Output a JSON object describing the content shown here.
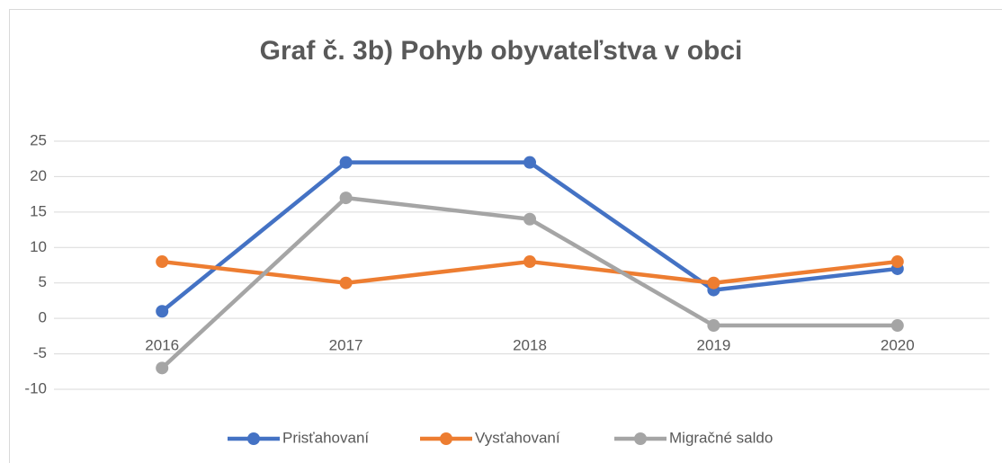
{
  "chart_data": {
    "type": "line",
    "title": "Graf č. 3b) Pohyb obyvateľstva v obci",
    "categories": [
      "2016",
      "2017",
      "2018",
      "2019",
      "2020"
    ],
    "series": [
      {
        "name": "Prisťahovaní",
        "color": "#4472c4",
        "values": [
          1,
          22,
          22,
          4,
          7
        ]
      },
      {
        "name": "Vysťahovaní",
        "color": "#ed7d31",
        "values": [
          8,
          5,
          8,
          5,
          8
        ]
      },
      {
        "name": "Migračné saldo",
        "color": "#a5a5a5",
        "values": [
          -7,
          17,
          14,
          -1,
          -1
        ]
      }
    ],
    "ylim": [
      -10,
      25
    ],
    "yticks": [
      -10,
      -5,
      0,
      5,
      10,
      15,
      20,
      25
    ],
    "grid": true,
    "legend": "bottom"
  }
}
